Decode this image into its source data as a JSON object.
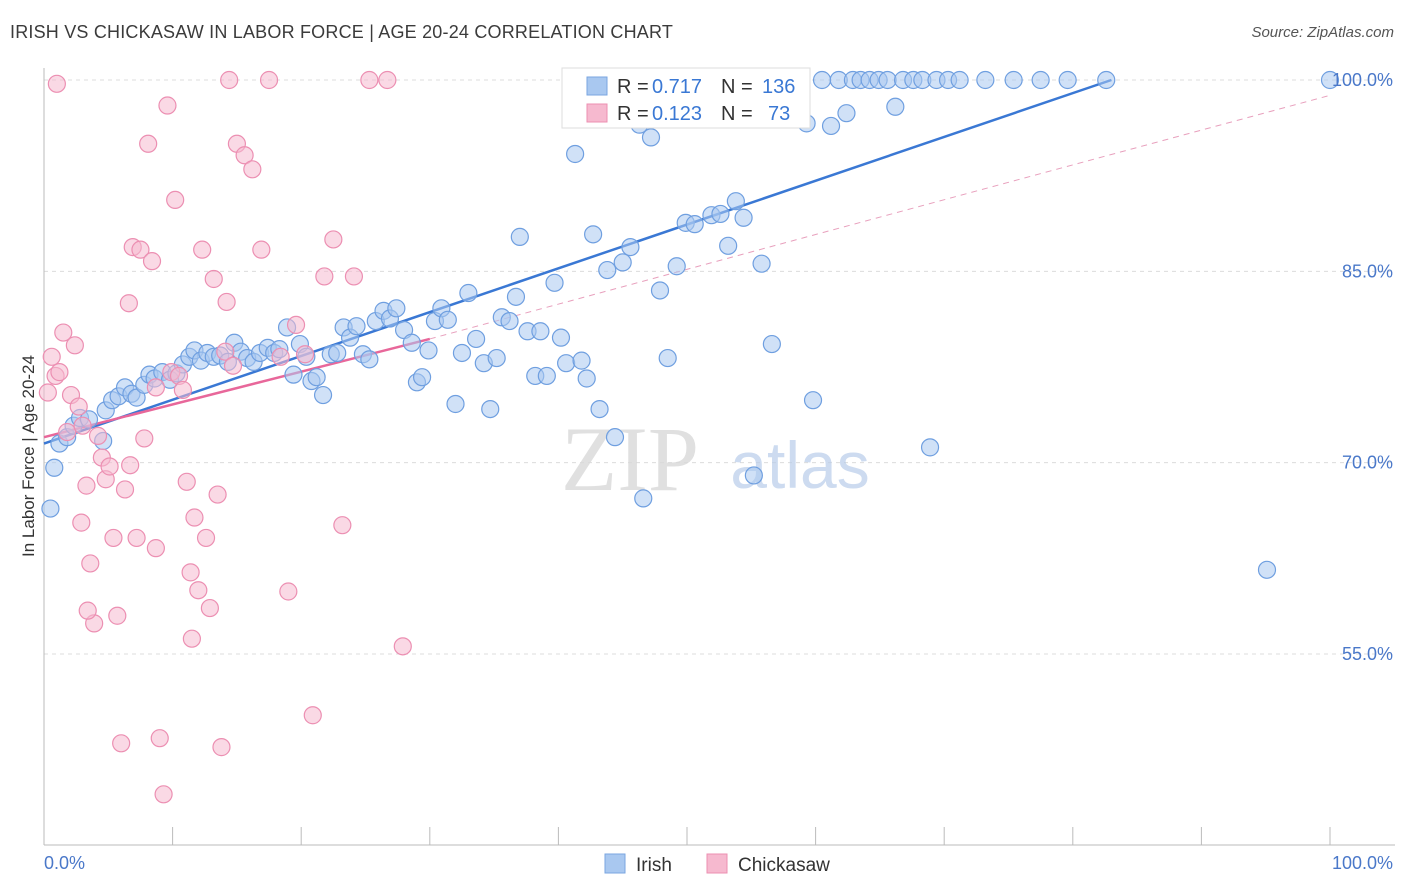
{
  "title": "IRISH VS CHICKASAW IN LABOR FORCE | AGE 20-24 CORRELATION CHART",
  "source": "Source: ZipAtlas.com",
  "watermark": {
    "zip": "ZIP",
    "atlas": "atlas"
  },
  "colors": {
    "irish": "#3a78d4",
    "irish_fill": "#a9c8f0",
    "chickasaw": "#e8679a",
    "chickasaw_fill": "#f6b9cf",
    "tick_text": "#4a78c9",
    "grid": "#dcdcdc"
  },
  "legend": {
    "irish": {
      "r_label": "R =",
      "r_value": "0.717",
      "n_label": "N =",
      "n_value": "136"
    },
    "chickasaw": {
      "r_label": "R =",
      "r_value": "0.123",
      "n_label": "N =",
      "n_value": "73"
    }
  },
  "bottom_legend": [
    "Irish",
    "Chickasaw"
  ],
  "chart_data": {
    "type": "scatter",
    "title": "IRISH VS CHICKASAW IN LABOR FORCE | AGE 20-24 CORRELATION CHART",
    "ylabel": "In Labor Force | Age 20-24",
    "xlabel": "",
    "xlim": [
      0,
      100
    ],
    "ylim": [
      40,
      101
    ],
    "x_tick_labels": [
      "0.0%",
      "100.0%"
    ],
    "y_ticks": [
      55,
      70,
      85,
      100
    ],
    "y_tick_labels": [
      "55.0%",
      "70.0%",
      "85.0%",
      "100.0%"
    ],
    "grid": true,
    "legend_position": "top-center",
    "series": [
      {
        "name": "Irish",
        "color": "#3a78d4",
        "trend": {
          "x": [
            0,
            83
          ],
          "y": [
            71.5,
            100
          ]
        },
        "points": [
          [
            0.5,
            66.4
          ],
          [
            0.8,
            69.6
          ],
          [
            1.2,
            71.5
          ],
          [
            1.8,
            72.0
          ],
          [
            2.3,
            72.9
          ],
          [
            2.8,
            73.5
          ],
          [
            3.5,
            73.4
          ],
          [
            4.6,
            71.7
          ],
          [
            4.8,
            74.1
          ],
          [
            5.3,
            74.9
          ],
          [
            5.8,
            75.2
          ],
          [
            6.3,
            75.9
          ],
          [
            6.8,
            75.4
          ],
          [
            7.2,
            75.1
          ],
          [
            7.8,
            76.1
          ],
          [
            8.2,
            76.9
          ],
          [
            8.6,
            76.6
          ],
          [
            9.2,
            77.1
          ],
          [
            9.8,
            76.5
          ],
          [
            10.3,
            77.0
          ],
          [
            10.8,
            77.7
          ],
          [
            11.3,
            78.3
          ],
          [
            11.7,
            78.8
          ],
          [
            12.2,
            78.0
          ],
          [
            12.7,
            78.6
          ],
          [
            13.2,
            78.3
          ],
          [
            13.7,
            78.4
          ],
          [
            14.3,
            77.9
          ],
          [
            14.8,
            79.4
          ],
          [
            15.3,
            78.7
          ],
          [
            15.8,
            78.2
          ],
          [
            16.3,
            77.9
          ],
          [
            16.8,
            78.6
          ],
          [
            17.4,
            79.0
          ],
          [
            17.9,
            78.6
          ],
          [
            18.3,
            78.9
          ],
          [
            18.9,
            80.6
          ],
          [
            19.4,
            76.9
          ],
          [
            19.9,
            79.3
          ],
          [
            20.4,
            78.3
          ],
          [
            20.8,
            76.4
          ],
          [
            21.2,
            76.7
          ],
          [
            21.7,
            75.3
          ],
          [
            22.3,
            78.5
          ],
          [
            22.8,
            78.6
          ],
          [
            23.3,
            80.6
          ],
          [
            23.8,
            79.8
          ],
          [
            24.3,
            80.7
          ],
          [
            24.8,
            78.5
          ],
          [
            25.3,
            78.1
          ],
          [
            25.8,
            81.1
          ],
          [
            26.4,
            81.9
          ],
          [
            26.9,
            81.3
          ],
          [
            27.4,
            82.1
          ],
          [
            28.0,
            80.4
          ],
          [
            28.6,
            79.4
          ],
          [
            29.0,
            76.3
          ],
          [
            29.4,
            76.7
          ],
          [
            29.9,
            78.8
          ],
          [
            30.4,
            81.1
          ],
          [
            30.9,
            82.1
          ],
          [
            31.4,
            81.2
          ],
          [
            32.0,
            74.6
          ],
          [
            32.5,
            78.6
          ],
          [
            33.0,
            83.3
          ],
          [
            33.6,
            79.7
          ],
          [
            34.2,
            77.8
          ],
          [
            34.7,
            74.2
          ],
          [
            35.2,
            78.2
          ],
          [
            35.6,
            81.4
          ],
          [
            36.2,
            81.1
          ],
          [
            36.7,
            83.0
          ],
          [
            37.0,
            87.7
          ],
          [
            37.6,
            80.3
          ],
          [
            38.2,
            76.8
          ],
          [
            38.6,
            80.3
          ],
          [
            39.1,
            76.8
          ],
          [
            39.7,
            84.1
          ],
          [
            40.2,
            79.8
          ],
          [
            40.6,
            77.8
          ],
          [
            41.3,
            94.2
          ],
          [
            41.8,
            78.0
          ],
          [
            42.2,
            76.6
          ],
          [
            42.7,
            87.9
          ],
          [
            43.2,
            74.2
          ],
          [
            43.8,
            85.1
          ],
          [
            44.4,
            72.0
          ],
          [
            45.0,
            85.7
          ],
          [
            45.6,
            86.9
          ],
          [
            46.3,
            96.5
          ],
          [
            46.6,
            67.2
          ],
          [
            47.2,
            95.5
          ],
          [
            47.9,
            83.5
          ],
          [
            48.5,
            78.2
          ],
          [
            49.2,
            85.4
          ],
          [
            49.9,
            88.8
          ],
          [
            50.6,
            88.7
          ],
          [
            51.4,
            99.4
          ],
          [
            51.9,
            89.4
          ],
          [
            52.6,
            89.5
          ],
          [
            53.2,
            87.0
          ],
          [
            53.8,
            90.5
          ],
          [
            54.4,
            89.2
          ],
          [
            55.2,
            69.0
          ],
          [
            55.8,
            85.6
          ],
          [
            56.6,
            79.3
          ],
          [
            57.3,
            100
          ],
          [
            57.8,
            100
          ],
          [
            58.4,
            98.3
          ],
          [
            58.9,
            97.3
          ],
          [
            59.3,
            96.6
          ],
          [
            59.8,
            74.9
          ],
          [
            60.5,
            100
          ],
          [
            61.2,
            96.4
          ],
          [
            61.8,
            100
          ],
          [
            62.4,
            97.4
          ],
          [
            62.9,
            100
          ],
          [
            63.5,
            100
          ],
          [
            64.2,
            100
          ],
          [
            64.9,
            100
          ],
          [
            65.6,
            100
          ],
          [
            66.2,
            97.9
          ],
          [
            66.8,
            100
          ],
          [
            67.6,
            100
          ],
          [
            68.3,
            100
          ],
          [
            68.9,
            71.2
          ],
          [
            69.4,
            100
          ],
          [
            70.3,
            100
          ],
          [
            71.2,
            100
          ],
          [
            73.2,
            100
          ],
          [
            75.4,
            100
          ],
          [
            77.5,
            100
          ],
          [
            79.6,
            100
          ],
          [
            82.6,
            100
          ],
          [
            95.1,
            61.6
          ],
          [
            100,
            100
          ]
        ]
      },
      {
        "name": "Chickasaw",
        "color": "#e8679a",
        "trend": {
          "x": [
            0,
            30
          ],
          "y": [
            72.0,
            79.7
          ]
        },
        "trend_extended": {
          "x": [
            30,
            100
          ],
          "y": [
            79.7,
            98.8
          ]
        },
        "points": [
          [
            0.3,
            75.5
          ],
          [
            0.6,
            78.3
          ],
          [
            0.9,
            76.8
          ],
          [
            1.2,
            77.1
          ],
          [
            1.5,
            80.2
          ],
          [
            1.8,
            72.4
          ],
          [
            2.1,
            75.3
          ],
          [
            2.4,
            79.2
          ],
          [
            2.7,
            74.4
          ],
          [
            3.0,
            72.9
          ],
          [
            3.3,
            68.2
          ],
          [
            3.6,
            62.1
          ],
          [
            3.9,
            57.4
          ],
          [
            4.2,
            72.1
          ],
          [
            4.5,
            70.4
          ],
          [
            4.8,
            68.7
          ],
          [
            5.1,
            69.7
          ],
          [
            5.4,
            64.1
          ],
          [
            5.7,
            58.0
          ],
          [
            6.0,
            48.0
          ],
          [
            6.3,
            67.9
          ],
          [
            6.6,
            82.5
          ],
          [
            6.9,
            86.9
          ],
          [
            7.2,
            64.1
          ],
          [
            7.5,
            86.7
          ],
          [
            7.8,
            71.9
          ],
          [
            8.1,
            95.0
          ],
          [
            8.4,
            85.8
          ],
          [
            8.7,
            75.9
          ],
          [
            9.0,
            48.4
          ],
          [
            9.3,
            44.0
          ],
          [
            9.6,
            98.0
          ],
          [
            9.9,
            77.1
          ],
          [
            10.2,
            90.6
          ],
          [
            10.5,
            76.8
          ],
          [
            10.8,
            75.7
          ],
          [
            11.1,
            68.5
          ],
          [
            11.4,
            61.4
          ],
          [
            11.7,
            65.7
          ],
          [
            12.0,
            60.0
          ],
          [
            12.3,
            86.7
          ],
          [
            12.6,
            64.1
          ],
          [
            12.9,
            58.6
          ],
          [
            13.2,
            84.4
          ],
          [
            13.5,
            67.5
          ],
          [
            13.8,
            47.7
          ],
          [
            14.1,
            78.7
          ],
          [
            14.4,
            100
          ],
          [
            14.7,
            77.6
          ],
          [
            15.0,
            95.0
          ],
          [
            15.6,
            94.1
          ],
          [
            16.2,
            93.0
          ],
          [
            16.9,
            86.7
          ],
          [
            17.5,
            100
          ],
          [
            18.4,
            78.3
          ],
          [
            19.0,
            59.9
          ],
          [
            20.3,
            78.5
          ],
          [
            20.9,
            50.2
          ],
          [
            21.8,
            84.6
          ],
          [
            22.5,
            87.5
          ],
          [
            24.1,
            84.6
          ],
          [
            25.3,
            100
          ],
          [
            26.7,
            100
          ],
          [
            27.9,
            55.6
          ],
          [
            1.0,
            99.7
          ],
          [
            3.4,
            58.4
          ],
          [
            8.7,
            63.3
          ],
          [
            11.5,
            56.2
          ],
          [
            2.9,
            65.3
          ],
          [
            6.7,
            69.8
          ],
          [
            14.2,
            82.6
          ],
          [
            19.6,
            80.8
          ],
          [
            23.2,
            65.1
          ]
        ]
      }
    ]
  }
}
